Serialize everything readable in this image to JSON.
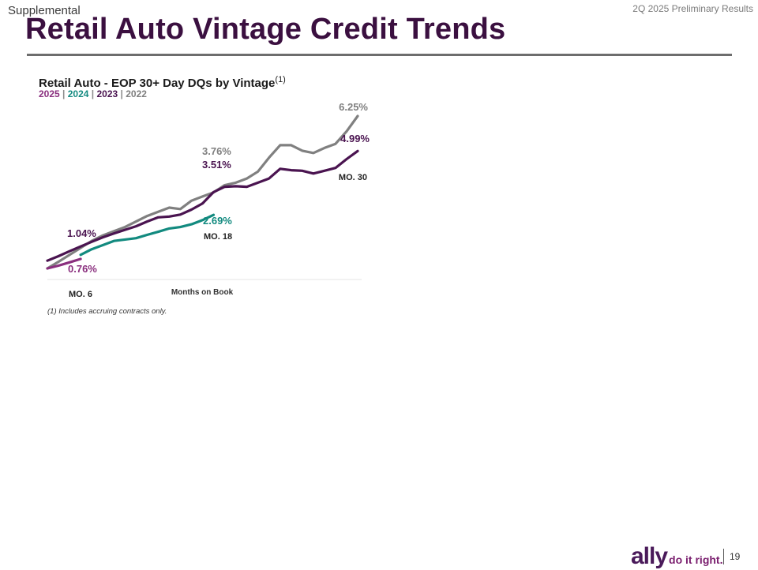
{
  "header": {
    "section": "Supplemental",
    "report": "2Q 2025 Preliminary Results",
    "title": "Retail Auto Vintage Credit Trends"
  },
  "chart_data": {
    "type": "line",
    "title": "Retail Auto - EOP 30+ Day DQs by Vintage",
    "title_superscript": "(1)",
    "xlabel": "Months on Book",
    "ylabel": "",
    "x_range": [
      6,
      34
    ],
    "ylim": [
      0.6,
      6.4
    ],
    "legend": [
      {
        "name": "2025",
        "color": "#8a2f7e"
      },
      {
        "name": "2024",
        "color": "#138a80"
      },
      {
        "name": "2023",
        "color": "#4a1450"
      },
      {
        "name": "2022",
        "color": "#7f7f7f"
      }
    ],
    "separator": "|",
    "series": [
      {
        "name": "2022",
        "color": "#808080",
        "x": [
          6,
          7,
          8,
          9,
          10,
          11,
          12,
          13,
          14,
          15,
          16,
          17,
          18,
          19,
          20,
          21,
          22,
          23,
          24,
          25,
          26,
          27,
          28,
          29,
          30,
          31,
          32,
          33,
          34
        ],
        "y": [
          0.76,
          1.0,
          1.25,
          1.5,
          1.75,
          1.95,
          2.1,
          2.25,
          2.45,
          2.65,
          2.8,
          2.95,
          2.9,
          3.2,
          3.35,
          3.5,
          3.76,
          3.85,
          4.0,
          4.25,
          4.75,
          5.2,
          5.2,
          5.0,
          4.92,
          5.1,
          5.25,
          5.7,
          6.25
        ]
      },
      {
        "name": "2023",
        "color": "#4a1450",
        "x": [
          6,
          7,
          8,
          9,
          10,
          11,
          12,
          13,
          14,
          15,
          16,
          17,
          18,
          19,
          20,
          21,
          22,
          23,
          24,
          25,
          26,
          27,
          28,
          29,
          30,
          31,
          32,
          33,
          34
        ],
        "y": [
          1.04,
          1.2,
          1.38,
          1.55,
          1.72,
          1.88,
          2.02,
          2.15,
          2.28,
          2.45,
          2.6,
          2.63,
          2.7,
          2.88,
          3.1,
          3.51,
          3.7,
          3.72,
          3.7,
          3.85,
          4.0,
          4.35,
          4.3,
          4.28,
          4.18,
          4.28,
          4.38,
          4.7,
          4.99
        ]
      },
      {
        "name": "2024",
        "color": "#128a7f",
        "x": [
          9,
          10,
          11,
          12,
          13,
          14,
          15,
          16,
          17,
          18,
          19,
          20,
          21
        ],
        "y": [
          1.25,
          1.45,
          1.6,
          1.75,
          1.8,
          1.85,
          1.97,
          2.08,
          2.2,
          2.25,
          2.35,
          2.5,
          2.69
        ]
      },
      {
        "name": "2025",
        "color": "#8a2f7e",
        "x": [
          6,
          7,
          8,
          9
        ],
        "y": [
          0.76,
          0.86,
          0.98,
          1.1
        ]
      }
    ],
    "annotations": [
      {
        "text": "6.25%",
        "color": "#7f7f7f"
      },
      {
        "text": "4.99%",
        "color": "#4a1450"
      },
      {
        "text": "MO. 30",
        "color": "#222222"
      },
      {
        "text": "3.76%",
        "color": "#7f7f7f"
      },
      {
        "text": "3.51%",
        "color": "#4a1450"
      },
      {
        "text": "2.69%",
        "color": "#128a7f"
      },
      {
        "text": "MO. 18",
        "color": "#222222"
      },
      {
        "text": "1.04%",
        "color": "#4a1450"
      },
      {
        "text": "0.76%",
        "color": "#8a2f7e"
      },
      {
        "text": "MO. 6",
        "color": "#222222"
      }
    ]
  },
  "footnote": "(1) Includes accruing contracts only.",
  "footer": {
    "brand": "ally",
    "tagline": "do it right.",
    "page": "19"
  }
}
